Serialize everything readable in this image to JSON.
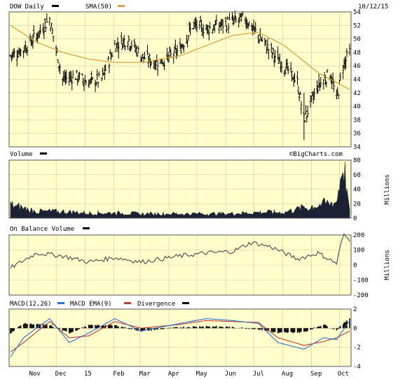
{
  "colors": {
    "panel_bg": "#ffffcc",
    "price_bar": "#000000",
    "sma": "#d9a441",
    "volume": "#1a2233",
    "obv": "#555555",
    "macd": "#2f6fd6",
    "ema": "#c0392b",
    "divergence": "#111111"
  },
  "header": {
    "symbol_label": "DOW Daily",
    "sma_label": "SMA(50)",
    "date": "10/12/15"
  },
  "volume_header": {
    "label": "Volume",
    "watermark": "©BigCharts.com"
  },
  "obv_header": {
    "label": "On Balance Volume"
  },
  "macd_header": {
    "macd_label": "MACD(12,26)",
    "ema_label": "MACD EMA(9)",
    "div_label": "Divergence"
  },
  "volume_units": "Millions",
  "obv_units": "Millions",
  "x_axis_labels": [
    "Nov",
    "Dec",
    "15",
    "Feb",
    "Mar",
    "Apr",
    "May",
    "Jun",
    "Jul",
    "Aug",
    "Sep",
    "Oct"
  ],
  "chart_data": [
    {
      "type": "ohlc",
      "title": "DOW Daily",
      "series": [
        {
          "name": "DOW Daily",
          "kind": "price",
          "x": [
            "2014-10-13",
            "2014-10-27",
            "2014-11-10",
            "2014-11-24",
            "2014-12-08",
            "2014-12-22",
            "2015-01-05",
            "2015-01-19",
            "2015-02-02",
            "2015-02-16",
            "2015-03-02",
            "2015-03-16",
            "2015-03-30",
            "2015-04-13",
            "2015-04-27",
            "2015-05-11",
            "2015-05-25",
            "2015-06-08",
            "2015-06-22",
            "2015-07-06",
            "2015-07-20",
            "2015-08-03",
            "2015-08-17",
            "2015-08-24",
            "2015-09-08",
            "2015-09-21",
            "2015-09-28",
            "2015-10-05",
            "2015-10-12"
          ],
          "values": [
            47.5,
            48.5,
            50.5,
            53,
            44,
            44.5,
            43.5,
            44,
            49,
            50,
            47.5,
            46.5,
            47,
            48.5,
            52,
            51.5,
            52,
            52.5,
            53,
            50.5,
            48,
            46,
            43.5,
            38,
            43,
            45,
            41,
            46,
            48
          ]
        },
        {
          "name": "SMA(50)",
          "x": [
            "2014-10-13",
            "2014-11-10",
            "2014-12-08",
            "2015-01-05",
            "2015-02-02",
            "2015-03-02",
            "2015-04-13",
            "2015-05-11",
            "2015-06-08",
            "2015-07-06",
            "2015-08-03",
            "2015-09-08",
            "2015-10-12"
          ],
          "values": [
            52,
            49.5,
            48,
            47,
            46.5,
            46.5,
            47.5,
            49,
            50.5,
            51,
            49,
            45,
            42.5
          ]
        }
      ],
      "ylim": [
        34,
        54
      ],
      "y_ticks": [
        34,
        36,
        38,
        40,
        42,
        44,
        46,
        48,
        50,
        52,
        54
      ],
      "grid": true
    },
    {
      "type": "bar",
      "title": "Volume",
      "ylabel": "Millions",
      "series": [
        {
          "name": "Volume",
          "x": [
            "2014-10-13",
            "2014-11-10",
            "2014-12-08",
            "2015-01-05",
            "2015-02-02",
            "2015-03-02",
            "2015-04-13",
            "2015-05-11",
            "2015-06-08",
            "2015-07-06",
            "2015-08-03",
            "2015-08-24",
            "2015-09-08",
            "2015-09-28",
            "2015-10-05",
            "2015-10-12"
          ],
          "values": [
            18,
            9,
            9,
            7,
            7,
            6,
            6,
            6,
            6,
            8,
            8,
            14,
            18,
            22,
            78,
            8
          ]
        }
      ],
      "ylim": [
        0,
        80
      ],
      "y_ticks": [
        0,
        20,
        40,
        60,
        80
      ],
      "grid": true
    },
    {
      "type": "line",
      "title": "On Balance Volume",
      "ylabel": "Millions",
      "series": [
        {
          "name": "On Balance Volume",
          "x": [
            "2014-10-13",
            "2014-11-10",
            "2014-12-08",
            "2015-01-05",
            "2015-02-02",
            "2015-03-02",
            "2015-04-13",
            "2015-05-11",
            "2015-06-08",
            "2015-06-29",
            "2015-07-20",
            "2015-08-17",
            "2015-09-08",
            "2015-09-28",
            "2015-10-05",
            "2015-10-12"
          ],
          "values": [
            -20,
            80,
            60,
            20,
            50,
            20,
            60,
            80,
            90,
            150,
            120,
            40,
            80,
            10,
            200,
            170
          ]
        }
      ],
      "ylim": [
        -200,
        200
      ],
      "y_ticks": [
        -200,
        -100,
        0,
        100,
        200
      ],
      "grid": true
    },
    {
      "type": "line",
      "title": "MACD(12,26)",
      "series": [
        {
          "name": "MACD(12,26)",
          "x": [
            "2014-10-13",
            "2014-10-27",
            "2014-11-24",
            "2014-12-15",
            "2015-01-05",
            "2015-02-02",
            "2015-03-02",
            "2015-04-13",
            "2015-05-11",
            "2015-06-08",
            "2015-07-06",
            "2015-07-27",
            "2015-08-24",
            "2015-09-14",
            "2015-09-28",
            "2015-10-12"
          ],
          "values": [
            -3,
            -1,
            1,
            -1.5,
            -0.5,
            1,
            -0.3,
            0.5,
            1,
            0.8,
            0.5,
            -1.5,
            -2.2,
            -1,
            -1.2,
            0.8
          ]
        },
        {
          "name": "MACD EMA(9)",
          "x": [
            "2014-10-13",
            "2014-10-27",
            "2014-11-24",
            "2014-12-15",
            "2015-01-05",
            "2015-02-02",
            "2015-03-02",
            "2015-04-13",
            "2015-05-11",
            "2015-06-08",
            "2015-07-06",
            "2015-07-27",
            "2015-08-24",
            "2015-09-14",
            "2015-09-28",
            "2015-10-12"
          ],
          "values": [
            -2.5,
            -1.5,
            0.7,
            -1,
            -0.8,
            0.7,
            0,
            0.4,
            0.8,
            0.7,
            0.6,
            -1,
            -1.8,
            -1.4,
            -1,
            -0.3
          ]
        },
        {
          "name": "Divergence",
          "x": [
            "2014-10-13",
            "2014-10-27",
            "2014-11-24",
            "2014-12-15",
            "2015-01-05",
            "2015-02-02",
            "2015-03-02",
            "2015-04-13",
            "2015-05-11",
            "2015-06-08",
            "2015-07-06",
            "2015-07-27",
            "2015-08-24",
            "2015-09-14",
            "2015-09-28",
            "2015-10-12"
          ],
          "values": [
            -0.5,
            0.5,
            0.3,
            -0.5,
            0.3,
            0.3,
            -0.3,
            0.1,
            0.2,
            0.1,
            -0.1,
            -0.5,
            -0.4,
            0.4,
            -0.2,
            1.1
          ]
        }
      ],
      "ylim": [
        -4,
        2
      ],
      "y_ticks": [
        -4,
        -2,
        0,
        2
      ],
      "grid": true
    }
  ]
}
